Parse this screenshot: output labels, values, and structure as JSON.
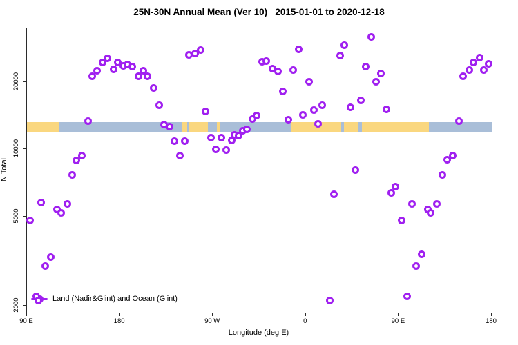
{
  "chart_data": {
    "type": "scatter",
    "title": "25N-30N Annual Mean (Ver 10)   2015-01-01 to 2020-12-18",
    "xlabel": "Longitude (deg E)",
    "ylabel": "N Total",
    "x_axis": {
      "range": [
        90,
        540
      ],
      "ticks": [
        {
          "pos": 90,
          "label": "90 E"
        },
        {
          "pos": 180,
          "label": "180"
        },
        {
          "pos": 270,
          "label": "90 W"
        },
        {
          "pos": 360,
          "label": "0"
        },
        {
          "pos": 450,
          "label": "90 E"
        },
        {
          "pos": 540,
          "label": "180"
        }
      ]
    },
    "y_axis": {
      "scale": "log",
      "range": [
        1860,
        34800
      ],
      "ticks": [
        {
          "value": 2000,
          "label": "2000"
        },
        {
          "value": 5000,
          "label": "5000"
        },
        {
          "value": 10000,
          "label": "10000"
        },
        {
          "value": 20000,
          "label": "20000"
        }
      ]
    },
    "legend": {
      "label": "Land (Nadir&Glint) and Ocean (Glint)"
    },
    "map_band": {
      "value_range": [
        12000,
        13250
      ],
      "segments": [
        {
          "type": "land",
          "from": 90,
          "to": 121.5
        },
        {
          "type": "ocean",
          "from": 121.5,
          "to": 240
        },
        {
          "type": "land",
          "from": 240,
          "to": 245
        },
        {
          "type": "ocean",
          "from": 245,
          "to": 247
        },
        {
          "type": "land",
          "from": 247,
          "to": 265
        },
        {
          "type": "ocean",
          "from": 265,
          "to": 274
        },
        {
          "type": "land",
          "from": 274,
          "to": 277
        },
        {
          "type": "ocean",
          "from": 277,
          "to": 345.5
        },
        {
          "type": "land",
          "from": 345.5,
          "to": 394
        },
        {
          "type": "ocean",
          "from": 394,
          "to": 397
        },
        {
          "type": "land",
          "from": 397,
          "to": 410
        },
        {
          "type": "ocean",
          "from": 410,
          "to": 414
        },
        {
          "type": "land",
          "from": 414,
          "to": 479
        },
        {
          "type": "ocean",
          "from": 479,
          "to": 540
        }
      ]
    },
    "points": [
      [
        153,
        21300
      ],
      [
        158,
        22400
      ],
      [
        163,
        24400
      ],
      [
        168,
        25600
      ],
      [
        174,
        22800
      ],
      [
        178,
        24400
      ],
      [
        183,
        23700
      ],
      [
        187,
        23900
      ],
      [
        192,
        23400
      ],
      [
        198,
        21300
      ],
      [
        203,
        22400
      ],
      [
        207,
        21200
      ],
      [
        213,
        18800
      ],
      [
        218,
        15800
      ],
      [
        149,
        13400
      ],
      [
        223,
        12900
      ],
      [
        228,
        12600
      ],
      [
        233,
        10900
      ],
      [
        243,
        10900
      ],
      [
        238,
        9400
      ],
      [
        143,
        9400
      ],
      [
        138,
        8900
      ],
      [
        134,
        7700
      ],
      [
        104,
        5800
      ],
      [
        129,
        5700
      ],
      [
        119,
        5400
      ],
      [
        123,
        5200
      ],
      [
        93,
        4800
      ],
      [
        113,
        3300
      ],
      [
        108,
        3000
      ],
      [
        99,
        2200
      ],
      [
        101,
        2100
      ],
      [
        247,
        26400
      ],
      [
        253,
        26800
      ],
      [
        258,
        27800
      ],
      [
        318,
        24600
      ],
      [
        322,
        24900
      ],
      [
        328,
        23000
      ],
      [
        333,
        22300
      ],
      [
        348,
        22600
      ],
      [
        353,
        28000
      ],
      [
        363,
        20000
      ],
      [
        338,
        18100
      ],
      [
        263,
        14800
      ],
      [
        312,
        14200
      ],
      [
        308,
        13700
      ],
      [
        343,
        13600
      ],
      [
        357,
        14300
      ],
      [
        368,
        15000
      ],
      [
        376,
        15800
      ],
      [
        372,
        13000
      ],
      [
        268,
        11300
      ],
      [
        278,
        11300
      ],
      [
        288,
        11000
      ],
      [
        291,
        11600
      ],
      [
        295,
        11500
      ],
      [
        299,
        12100
      ],
      [
        303,
        12300
      ],
      [
        273,
        10000
      ],
      [
        283,
        9900
      ],
      [
        423,
        31800
      ],
      [
        397,
        29300
      ],
      [
        393,
        26300
      ],
      [
        418,
        23400
      ],
      [
        433,
        21800
      ],
      [
        428,
        20100
      ],
      [
        413,
        16500
      ],
      [
        403,
        15400
      ],
      [
        438,
        15100
      ],
      [
        508,
        13400
      ],
      [
        512,
        21300
      ],
      [
        518,
        22600
      ],
      [
        522,
        24400
      ],
      [
        528,
        25800
      ],
      [
        532,
        22600
      ],
      [
        537,
        24100
      ],
      [
        408,
        8050
      ],
      [
        387,
        6300
      ],
      [
        443,
        6400
      ],
      [
        447,
        6800
      ],
      [
        463,
        5700
      ],
      [
        478,
        5400
      ],
      [
        481,
        5200
      ],
      [
        487,
        5700
      ],
      [
        453,
        4800
      ],
      [
        472,
        3400
      ],
      [
        467,
        3000
      ],
      [
        458,
        2200
      ],
      [
        383,
        2100
      ],
      [
        497,
        9000
      ],
      [
        502,
        9400
      ],
      [
        492,
        7700
      ]
    ],
    "colors": {
      "point": "#A020F0",
      "land": "#FAD77F",
      "ocean": "#A9BED8",
      "axis": "#2b2b2b"
    }
  }
}
